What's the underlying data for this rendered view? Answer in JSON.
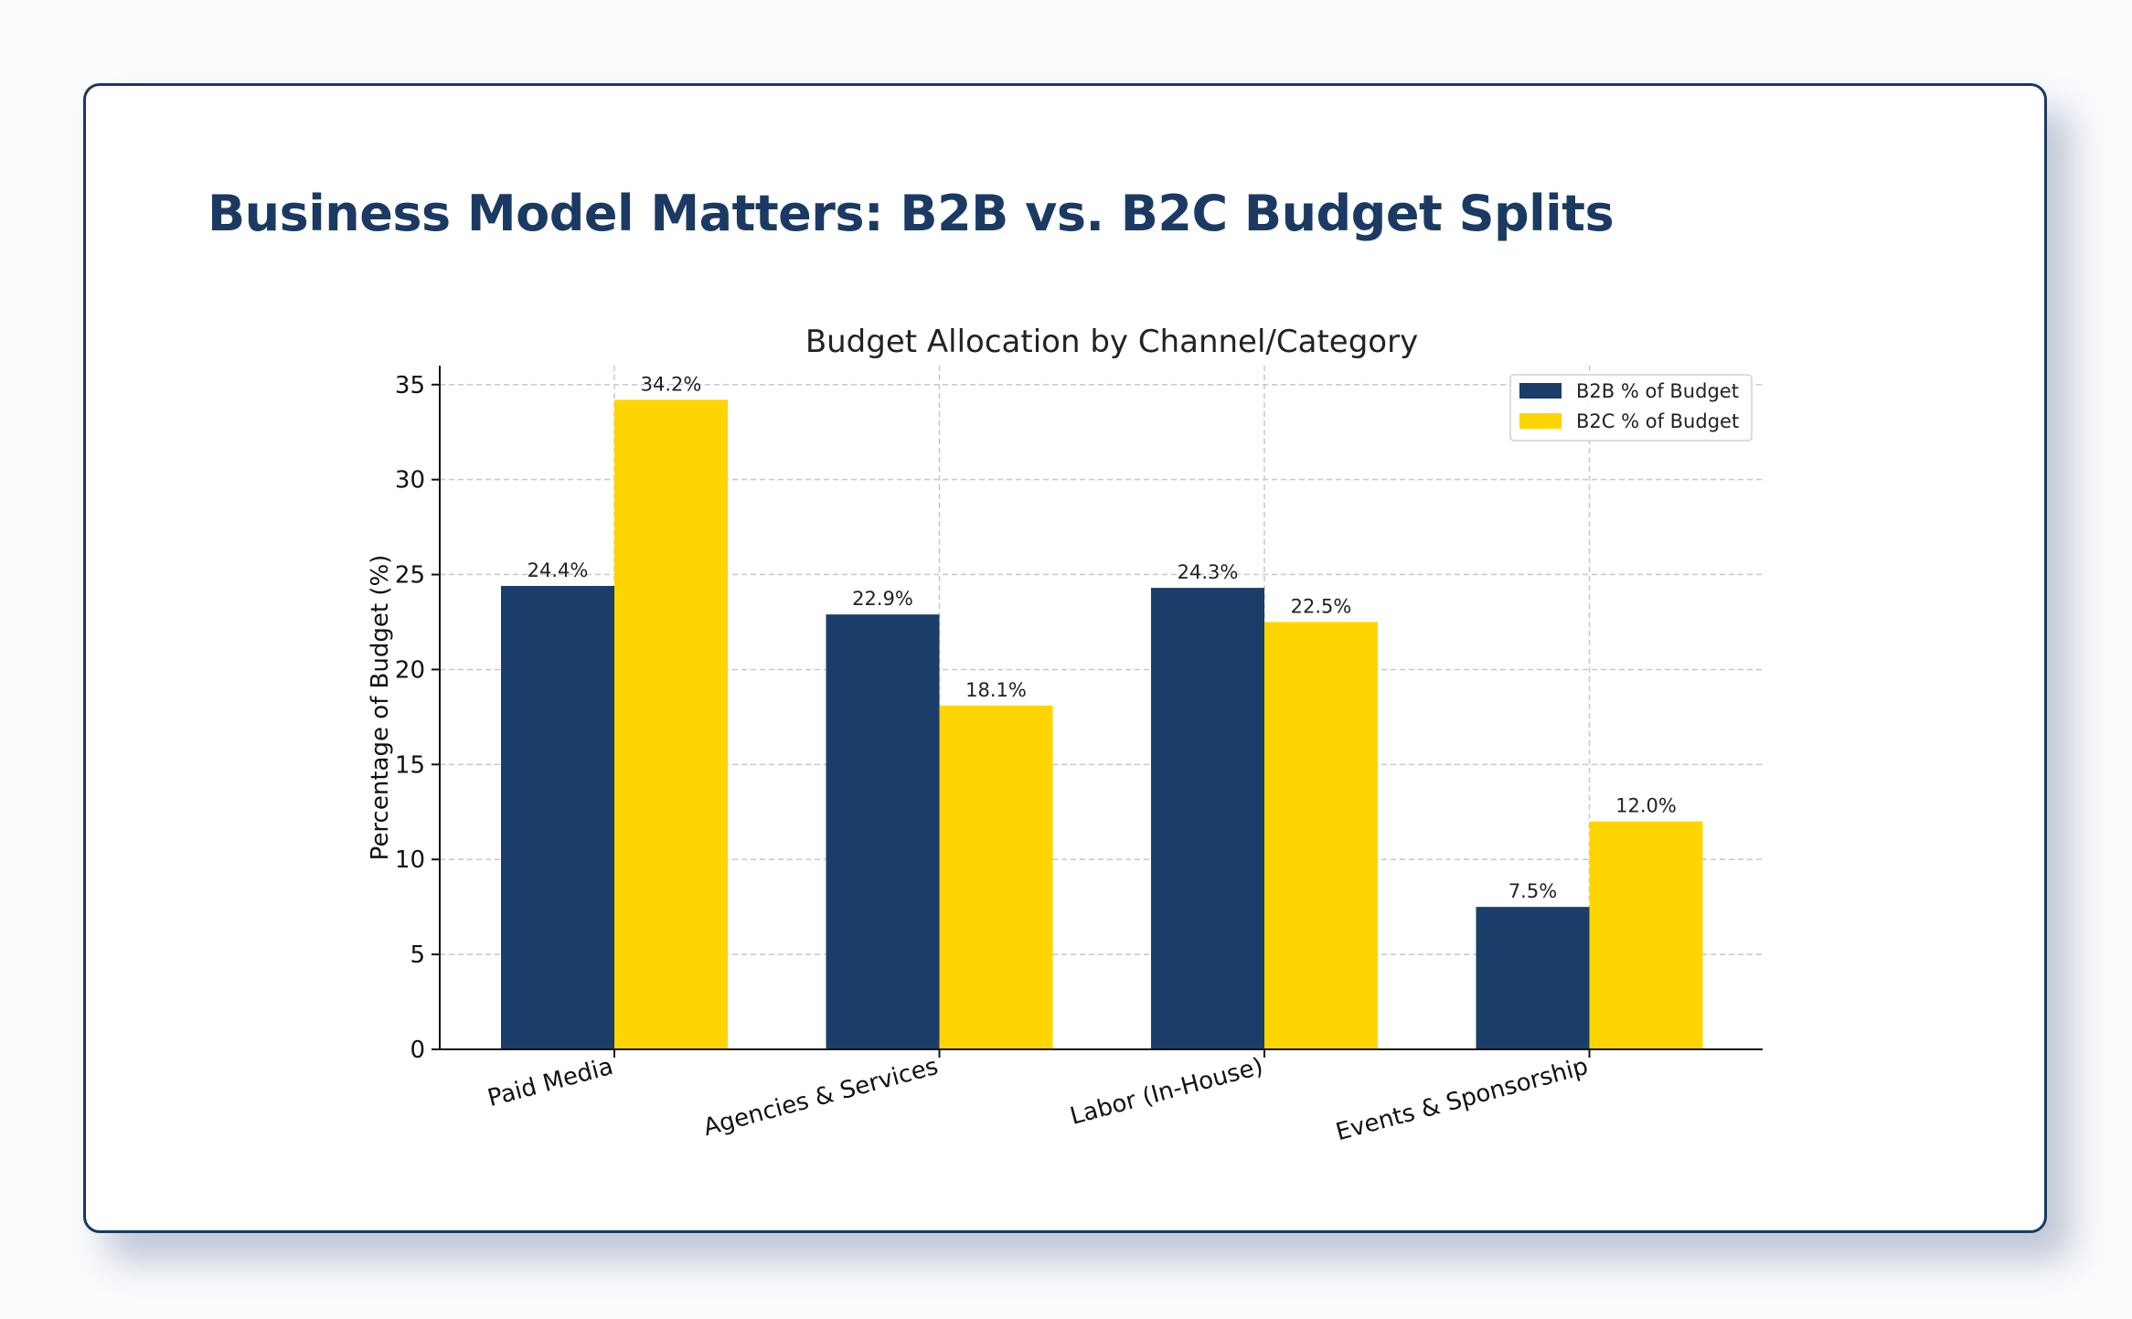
{
  "page": {
    "title": "Business Model Matters: B2B vs. B2C Budget Splits"
  },
  "colors": {
    "b2b": "#1b3d69",
    "b2c": "#ffd500",
    "title": "#1b3a63"
  },
  "chart_data": {
    "type": "bar",
    "title": "Budget Allocation by Channel/Category",
    "xlabel": "",
    "ylabel": "Percentage of Budget (%)",
    "categories": [
      "Paid Media",
      "Agencies & Services",
      "Labor (In-House)",
      "Events & Sponsorship"
    ],
    "series": [
      {
        "name": "B2B % of Budget",
        "values": [
          24.4,
          22.9,
          24.3,
          7.5
        ],
        "labels": [
          "24.4%",
          "22.9%",
          "24.3%",
          "7.5%"
        ]
      },
      {
        "name": "B2C % of Budget",
        "values": [
          34.2,
          18.1,
          22.5,
          12.0
        ],
        "labels": [
          "34.2%",
          "18.1%",
          "22.5%",
          "12.0%"
        ]
      }
    ],
    "ylim": [
      0,
      36
    ],
    "yticks": [
      "0",
      "5",
      "10",
      "15",
      "20",
      "25",
      "30",
      "35"
    ],
    "grid": true,
    "legend_position": "top-right"
  }
}
